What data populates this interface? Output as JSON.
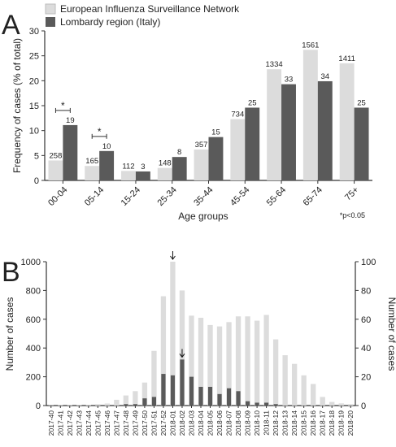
{
  "colors": {
    "light": "#dcdcdc",
    "dark": "#5a5a5a",
    "axis": "#333333"
  },
  "chart_data": [
    {
      "panel": "A",
      "type": "bar",
      "legend": [
        "European Influenza Surveillance Network",
        "Lombardy region (Italy)"
      ],
      "legend_position": "top",
      "categories": [
        "00-04",
        "05-14",
        "15-24",
        "25-34",
        "35-44",
        "45-54",
        "55-64",
        "65-74",
        "75+"
      ],
      "series": [
        {
          "name": "European Influenza Surveillance Network",
          "values": [
            4,
            2.9,
            1.9,
            2.5,
            6.2,
            12.3,
            22.3,
            26.2,
            23.5
          ],
          "labels": [
            "258",
            "165",
            "112",
            "148",
            "357",
            "734",
            "1334",
            "1561",
            "1411"
          ]
        },
        {
          "name": "Lombardy region (Italy)",
          "values": [
            11.1,
            5.9,
            1.8,
            4.7,
            8.7,
            14.6,
            19.3,
            19.9,
            14.6
          ],
          "labels": [
            "19",
            "10",
            "3",
            "8",
            "15",
            "25",
            "33",
            "34",
            "25"
          ]
        }
      ],
      "xlabel": "Age groups",
      "ylabel": "Frequency of cases (% of total)",
      "ylim": [
        0,
        30
      ],
      "yticks": [
        0,
        5,
        10,
        15,
        20,
        25,
        30
      ],
      "significance": [
        {
          "category": "00-04",
          "mark": "*"
        },
        {
          "category": "05-14",
          "mark": "*"
        }
      ],
      "footnote": "*p<0.05",
      "grid": false
    },
    {
      "panel": "B",
      "type": "bar",
      "categories": [
        "2017-40",
        "2017-41",
        "2017-42",
        "2017-43",
        "2017-44",
        "2017-45",
        "2017-46",
        "2017-47",
        "2017-48",
        "2017-49",
        "2017-50",
        "2017-51",
        "2017-52",
        "2018-01",
        "2018-02",
        "2018-03",
        "2018-04",
        "2018-05",
        "2018-06",
        "2018-07",
        "2018-08",
        "2018-09",
        "2018-10",
        "2018-11",
        "2018-12",
        "2018-13",
        "2018-14",
        "2018-15",
        "2018-16",
        "2018-17",
        "2018-18",
        "2018-19",
        "2018-20"
      ],
      "series": [
        {
          "axis": "left",
          "ylim": [
            0,
            1000
          ],
          "values": [
            2,
            3,
            3,
            4,
            6,
            10,
            14,
            40,
            70,
            100,
            160,
            380,
            760,
            1000,
            800,
            625,
            610,
            560,
            550,
            580,
            620,
            620,
            590,
            630,
            460,
            350,
            290,
            210,
            150,
            60,
            25,
            15,
            10
          ]
        },
        {
          "axis": "right",
          "ylim": [
            0,
            100
          ],
          "values": [
            0,
            0,
            0,
            0,
            0,
            0,
            0,
            0,
            1,
            1,
            5,
            6,
            22,
            21,
            32,
            20,
            13,
            13,
            8,
            12,
            10,
            3,
            2,
            2,
            1,
            0,
            0,
            0,
            0,
            0,
            0,
            0,
            0
          ]
        }
      ],
      "ylabel": "Number of cases",
      "ylabel_right": "Number of cases",
      "yticks_left": [
        0,
        200,
        400,
        600,
        800,
        1000
      ],
      "yticks_right": [
        0,
        20,
        40,
        60,
        80,
        100
      ],
      "arrows": [
        {
          "category": "2018-01",
          "series": 0
        },
        {
          "category": "2018-02",
          "series": 1
        }
      ],
      "grid": false
    }
  ],
  "panel_labels": {
    "a": "A",
    "b": "B"
  }
}
